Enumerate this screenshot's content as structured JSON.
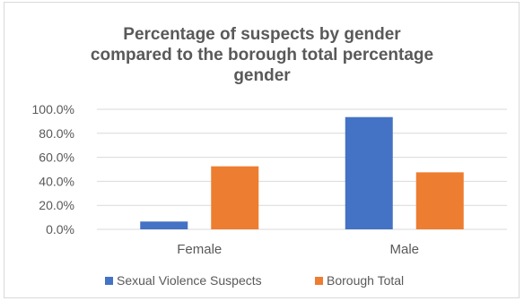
{
  "chart_data": {
    "type": "bar",
    "title": "Percentage of suspects by gender compared to the borough total percentage gender",
    "title_lines": [
      "Percentage of suspects by gender",
      "compared to the borough total percentage",
      "gender"
    ],
    "categories": [
      "Female",
      "Male"
    ],
    "series": [
      {
        "name": "Sexual Violence Suspects",
        "values": [
          6.5,
          93.5
        ],
        "color": "#4472C4"
      },
      {
        "name": "Borough Total",
        "values": [
          52.5,
          47.5
        ],
        "color": "#ED7D31"
      }
    ],
    "ylim": [
      0,
      100
    ],
    "yticks": [
      0,
      20,
      40,
      60,
      80,
      100
    ],
    "ytick_labels": [
      "0.0%",
      "20.0%",
      "40.0%",
      "60.0%",
      "80.0%",
      "100.0%"
    ],
    "xlabel": "",
    "ylabel": "",
    "grid": true,
    "legend_position": "bottom"
  }
}
